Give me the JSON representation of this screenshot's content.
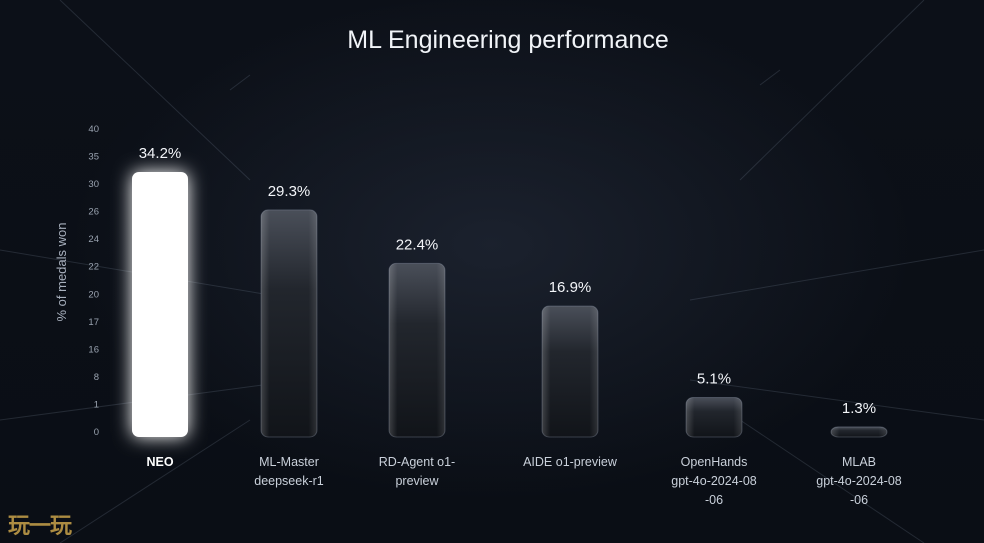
{
  "chart_data": {
    "type": "bar",
    "title": "ML Engineering performance",
    "ylabel": "% of medals won",
    "xlabel": "",
    "y_tick_labels": [
      "40",
      "35",
      "30",
      "26",
      "24",
      "22",
      "20",
      "17",
      "16",
      "8",
      "1",
      "0"
    ],
    "categories": [
      [
        "NEO"
      ],
      [
        "ML-Master",
        "deepseek-r1"
      ],
      [
        "RD-Agent o1-",
        "preview"
      ],
      [
        "AIDE o1-preview"
      ],
      [
        "OpenHands",
        "gpt-4o-2024-08",
        "-06"
      ],
      [
        "MLAB",
        "gpt-4o-2024-08",
        "-06"
      ]
    ],
    "values": [
      34.2,
      29.3,
      22.4,
      16.9,
      5.1,
      1.3
    ],
    "value_labels": [
      "34.2%",
      "29.3%",
      "22.4%",
      "16.9%",
      "5.1%",
      "1.3%"
    ],
    "highlight_index": 0,
    "ylim": [
      0,
      40
    ],
    "grid": false,
    "legend": "none"
  },
  "colors": {
    "background": "#0b0f16",
    "highlight_bar": "#ffffff",
    "bar_top": "#3a3f49",
    "bar_bottom": "#15181e",
    "text": "#f1f4f8"
  },
  "watermark": "玩一玩"
}
